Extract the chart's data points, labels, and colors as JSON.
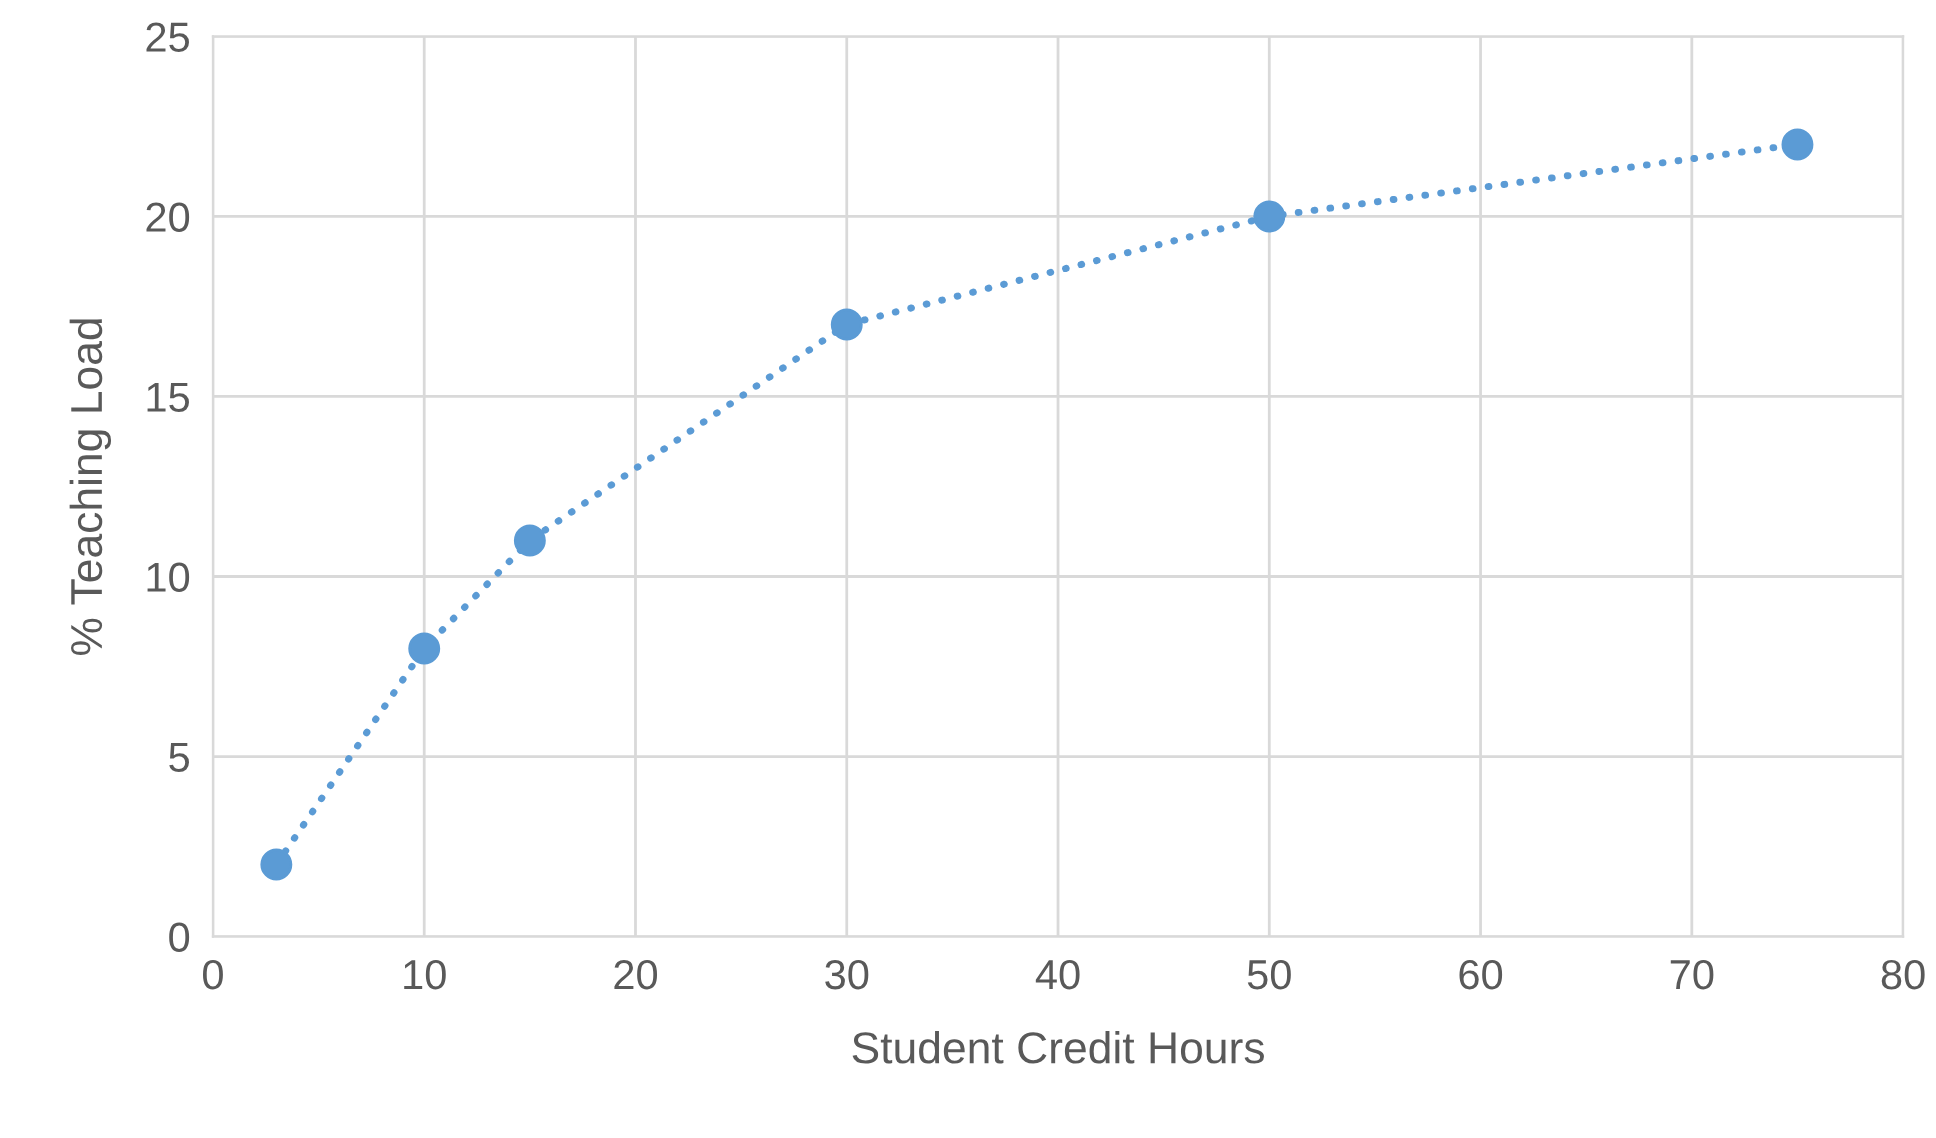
{
  "chart_data": {
    "type": "line",
    "xlabel": "Student Credit Hours",
    "ylabel": "% Teaching Load",
    "x": [
      3,
      10,
      15,
      30,
      50,
      75
    ],
    "series": [
      {
        "color": "#5b9bd5",
        "values": [
          2,
          8,
          11,
          17,
          20,
          22
        ]
      }
    ],
    "xlim": [
      0,
      80
    ],
    "xticks": [
      0,
      10,
      20,
      30,
      40,
      50,
      60,
      70,
      80
    ],
    "ylim": [
      0,
      25
    ],
    "yticks": [
      0,
      5,
      10,
      15,
      20,
      25
    ],
    "grid": true,
    "marker": "circle",
    "line_style": "dotted"
  }
}
